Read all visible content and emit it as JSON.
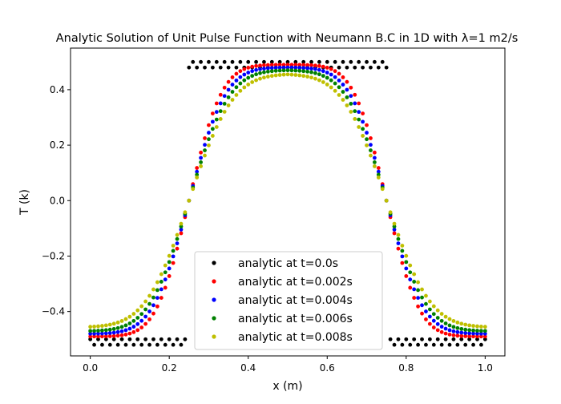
{
  "chart_data": {
    "type": "scatter",
    "title": "Analytic Solution of Unit Pulse Function with Neumann B.C in 1D with λ=1 m2/s",
    "xlabel": "x (m)",
    "ylabel": "T (k)",
    "xlim": [
      -0.05,
      1.05
    ],
    "ylim": [
      -0.56,
      0.55
    ],
    "xticks": [
      0.0,
      0.2,
      0.4,
      0.6,
      0.8,
      1.0
    ],
    "xtick_labels": [
      "0.0",
      "0.2",
      "0.4",
      "0.6",
      "0.8",
      "1.0"
    ],
    "yticks": [
      -0.4,
      -0.2,
      0.0,
      0.2,
      0.4
    ],
    "ytick_labels": [
      "−0.4",
      "−0.2",
      "0.0",
      "0.2",
      "0.4"
    ],
    "grid": false,
    "legend_position": "lower center",
    "series": [
      {
        "name": "analytic at t=0.0s",
        "color": "#000000",
        "initial_step": true
      },
      {
        "name": "analytic at t=0.002s",
        "color": "#ff0000",
        "amplitude": 0.49,
        "width": 0.185
      },
      {
        "name": "analytic at t=0.004s",
        "color": "#0000ff",
        "amplitude": 0.48,
        "width": 0.205
      },
      {
        "name": "analytic at t=0.006s",
        "color": "#008000",
        "amplitude": 0.47,
        "width": 0.225
      },
      {
        "name": "analytic at t=0.008s",
        "color": "#bfbf00",
        "amplitude": 0.455,
        "width": 0.245
      }
    ],
    "x_grid": {
      "start": 0.0,
      "end": 1.0,
      "count": 101
    }
  }
}
